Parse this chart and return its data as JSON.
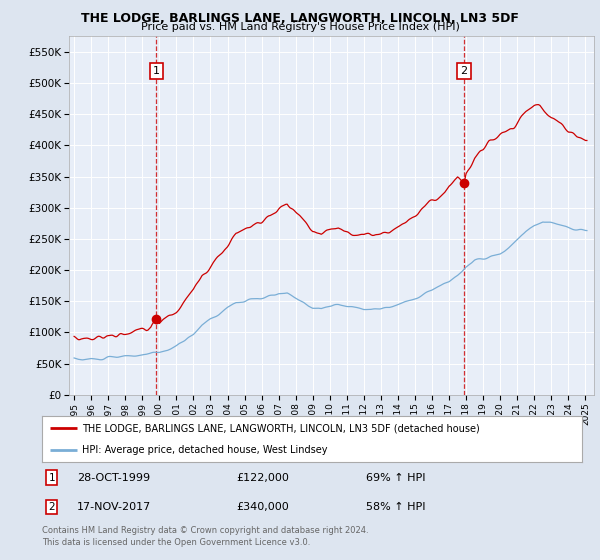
{
  "title": "THE LODGE, BARLINGS LANE, LANGWORTH, LINCOLN, LN3 5DF",
  "subtitle": "Price paid vs. HM Land Registry's House Price Index (HPI)",
  "bg_color": "#dde5f0",
  "plot_bg": "#e8eef8",
  "red_color": "#cc0000",
  "blue_color": "#7aaed6",
  "dashed_color": "#cc0000",
  "sale1_x": 1999.83,
  "sale1_price": 122000,
  "sale2_x": 2017.87,
  "sale2_price": 340000,
  "legend_line1": "THE LODGE, BARLINGS LANE, LANGWORTH, LINCOLN, LN3 5DF (detached house)",
  "legend_line2": "HPI: Average price, detached house, West Lindsey",
  "footer": "Contains HM Land Registry data © Crown copyright and database right 2024.\nThis data is licensed under the Open Government Licence v3.0.",
  "ylim": [
    0,
    575000
  ],
  "yticks": [
    0,
    50000,
    100000,
    150000,
    200000,
    250000,
    300000,
    350000,
    400000,
    450000,
    500000,
    550000
  ],
  "xlim_min": 1994.7,
  "xlim_max": 2025.5
}
